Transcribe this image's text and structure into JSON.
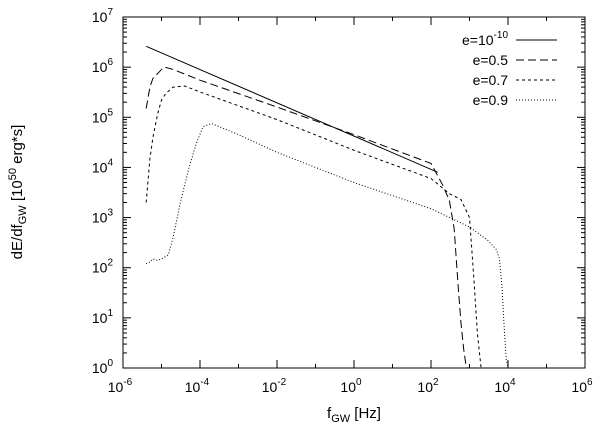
{
  "chart_data": {
    "type": "line",
    "title": "",
    "xlabel": {
      "base": "f",
      "sub": "GW",
      "rest": " [Hz]"
    },
    "ylabel": {
      "a": "dE/df",
      "sub": "GW",
      "b": " [10",
      "sup": "50",
      "c": " erg*s]"
    },
    "x_scale": "log",
    "y_scale": "log",
    "xlim": [
      1e-06,
      1000000.0
    ],
    "ylim": [
      1,
      10000000.0
    ],
    "grid": false,
    "legend_position": "top-right",
    "x_ticks": [
      {
        "value": 1e-06,
        "base": "10",
        "exp": "-6"
      },
      {
        "value": 0.0001,
        "base": "10",
        "exp": "-4"
      },
      {
        "value": 0.01,
        "base": "10",
        "exp": "-2"
      },
      {
        "value": 1,
        "base": "10",
        "exp": "0"
      },
      {
        "value": 100.0,
        "base": "10",
        "exp": "2"
      },
      {
        "value": 10000.0,
        "base": "10",
        "exp": "4"
      },
      {
        "value": 1000000.0,
        "base": "10",
        "exp": "6"
      }
    ],
    "y_ticks": [
      {
        "value": 1,
        "base": "10",
        "exp": "0"
      },
      {
        "value": 10,
        "base": "10",
        "exp": "1"
      },
      {
        "value": 100.0,
        "base": "10",
        "exp": "2"
      },
      {
        "value": 1000.0,
        "base": "10",
        "exp": "3"
      },
      {
        "value": 10000.0,
        "base": "10",
        "exp": "4"
      },
      {
        "value": 100000.0,
        "base": "10",
        "exp": "5"
      },
      {
        "value": 1000000.0,
        "base": "10",
        "exp": "6"
      },
      {
        "value": 10000000.0,
        "base": "10",
        "exp": "7"
      }
    ],
    "series": [
      {
        "name": "e=10-10",
        "label_base": "e=10",
        "label_exp": "-10",
        "dash": "solid",
        "color": "#000000",
        "x": [
          4e-06,
          150
        ],
        "y": [
          2600000,
          8000
        ]
      },
      {
        "name": "e=0.5",
        "label_base": "e=0.5",
        "label_exp": "",
        "dash": "long-dash",
        "color": "#000000",
        "x": [
          4e-06,
          5e-06,
          6e-06,
          8e-06,
          1e-05,
          1.2e-05,
          2e-05,
          0.0001,
          0.01,
          1,
          100,
          200,
          300,
          400,
          500,
          600,
          700,
          800,
          900
        ],
        "y": [
          150000,
          400000,
          600000,
          750000,
          900000,
          1000000,
          900000,
          550000,
          160000,
          45000,
          12000,
          4500,
          2200,
          600,
          50,
          8,
          2.5,
          1.2,
          1
        ]
      },
      {
        "name": "e=0.7",
        "label_base": "e=0.7",
        "label_exp": "",
        "dash": "short-dash",
        "color": "#000000",
        "x": [
          4e-06,
          5e-06,
          6e-06,
          8e-06,
          1e-05,
          1.3e-05,
          2e-05,
          4e-05,
          0.0001,
          0.01,
          1,
          100,
          300,
          600,
          1000,
          1300,
          1600,
          2000
        ],
        "y": [
          2000,
          15000,
          40000,
          120000,
          220000,
          300000,
          400000,
          420000,
          320000,
          90000,
          22000,
          6000,
          3000,
          2300,
          1000,
          60,
          5,
          1
        ]
      },
      {
        "name": "e=0.9",
        "label_base": "e=0.9",
        "label_exp": "",
        "dash": "dotted",
        "color": "#000000",
        "x": [
          4e-06,
          5e-06,
          6e-06,
          8e-06,
          1e-05,
          1.5e-05,
          2e-05,
          3e-05,
          5e-05,
          8e-05,
          0.00012,
          0.0002,
          0.001,
          0.01,
          1,
          100,
          1000,
          3000,
          5000,
          6000,
          7000,
          8000,
          9000,
          10000
        ],
        "y": [
          120,
          130,
          150,
          140,
          150,
          180,
          400,
          1800,
          9000,
          30000,
          65000,
          75000,
          45000,
          20000,
          5000,
          1500,
          650,
          350,
          230,
          150,
          40,
          6,
          1.5,
          1
        ]
      }
    ]
  }
}
